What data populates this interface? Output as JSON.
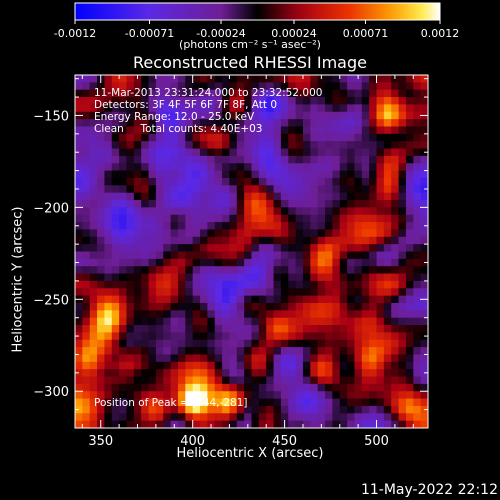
{
  "chart_data": {
    "type": "heatmap",
    "title": "Reconstructed RHESSI Image",
    "xlabel": "Heliocentric X (arcsec)",
    "ylabel": "Heliocentric Y (arcsec)",
    "xlim": [
      336,
      528
    ],
    "ylim": [
      -320,
      -128
    ],
    "x_ticks": [
      350,
      400,
      450,
      500
    ],
    "y_ticks": [
      -150,
      -200,
      -250,
      -300
    ],
    "colorbar": {
      "min": -0.0012,
      "max": 0.0012,
      "ticks": [
        "-0.0012",
        "-0.00071",
        "-0.00024",
        "0.00024",
        "0.00071",
        "0.0012"
      ],
      "unit_label": "(photons cm⁻² s⁻¹ asec⁻²)",
      "colormap": "rhessi-blue-to-hot"
    },
    "annotations": {
      "time_range": "11-Mar-2013 23:31:24.000 to 23:32:52.000",
      "detectors": "Detectors: 3F 4F 5F 6F 7F 8F, Att 0",
      "energy": "Energy Range: 12.0 - 25.0 keV",
      "method": "Clean     Total counts: 4.40E+03",
      "peak": "Position of Peak = [344,-281]"
    },
    "peak_position": [
      344,
      -281
    ],
    "grid": false
  },
  "footer": "11-May-2022 22:12",
  "colors": {
    "background": "#000000",
    "text": "#ffffff"
  }
}
